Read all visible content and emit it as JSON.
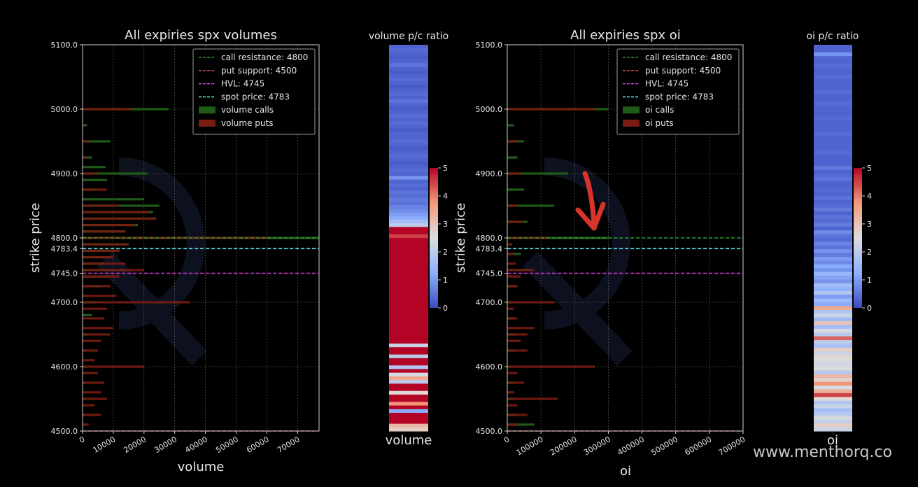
{
  "watermark": "www.menthorq.co",
  "colors": {
    "call_resistance": "#2e9e2e",
    "put_support": "#d9363e",
    "hvl": "#d632d6",
    "spot": "#5ee0e6",
    "calls_bar": "#1f5c1a",
    "puts_bar": "#7a1c12"
  },
  "chart_data": [
    {
      "id": "volumes",
      "type": "bar",
      "orientation": "horizontal",
      "title": "All expiries  spx volumes",
      "xlabel": "volume",
      "ylabel": "strike price",
      "xlim": [
        0,
        77000
      ],
      "ylim": [
        4500,
        5100
      ],
      "x_ticks": [
        "0",
        "10000",
        "20000",
        "30000",
        "40000",
        "50000",
        "60000",
        "70000"
      ],
      "y_ticks": [
        "4500.0",
        "4600.0",
        "4700.0",
        "4745.0",
        "4783.4",
        "4800.0",
        "4900.0",
        "5000.0",
        "5100.0"
      ],
      "grid": true,
      "legend_position": "top-right",
      "legend": [
        "call resistance: 4800",
        "put support: 4500",
        "HVL: 4745",
        "spot price: 4783",
        "volume calls",
        "volume puts"
      ],
      "levels": {
        "call_resistance": 4800,
        "put_support": 4500,
        "hvl": 4745,
        "spot": 4783.4
      },
      "series": [
        {
          "name": "volume calls",
          "strike": [
            5000,
            4975,
            4950,
            4925,
            4910,
            4900,
            4890,
            4875,
            4860,
            4850,
            4840,
            4830,
            4820,
            4810,
            4800,
            4790,
            4780,
            4770,
            4760,
            4750,
            4740,
            4725,
            4700,
            4680,
            4650,
            4625,
            4600,
            4575,
            4550,
            4525,
            4510
          ],
          "values": [
            28000,
            1500,
            9000,
            3000,
            7500,
            21000,
            8000,
            4000,
            20000,
            25000,
            23000,
            24000,
            18000,
            14000,
            77000,
            15000,
            12000,
            9000,
            7000,
            14000,
            9000,
            6000,
            4000,
            3000,
            2000,
            1500,
            1500,
            1000,
            1000,
            800,
            800
          ]
        },
        {
          "name": "volume puts",
          "strike": [
            5000,
            4975,
            4950,
            4925,
            4900,
            4875,
            4850,
            4840,
            4830,
            4820,
            4810,
            4800,
            4790,
            4780,
            4770,
            4760,
            4750,
            4740,
            4725,
            4710,
            4700,
            4690,
            4675,
            4660,
            4650,
            4640,
            4625,
            4610,
            4600,
            4590,
            4575,
            4560,
            4550,
            4540,
            4525,
            4510
          ],
          "values": [
            16000,
            500,
            2000,
            1500,
            5000,
            8000,
            12000,
            22000,
            24000,
            17000,
            14000,
            60000,
            15000,
            12000,
            10000,
            14000,
            20000,
            12000,
            9000,
            11000,
            35000,
            8000,
            7000,
            10000,
            9000,
            6000,
            5000,
            4000,
            20000,
            5000,
            7000,
            6000,
            8000,
            4000,
            6000,
            2000
          ]
        }
      ]
    },
    {
      "id": "volume_ratio",
      "type": "heatmap",
      "title": "volume p/c ratio",
      "xlabel": "volume",
      "colorbar_ticks": [
        "0",
        "1",
        "2",
        "3",
        "4",
        "5"
      ],
      "colorbar_range": [
        0,
        5
      ],
      "values": [
        0.3,
        0.4,
        0.3,
        0.2,
        0.3,
        0.5,
        0.3,
        0.2,
        0.3,
        0.4,
        0.3,
        0.2,
        0.3,
        0.4,
        0.3,
        0.5,
        0.3,
        0.2,
        0.3,
        0.4,
        0.3,
        0.4,
        0.3,
        0.2,
        0.3,
        0.3,
        0.4,
        0.3,
        0.2,
        0.3,
        0.4,
        0.3,
        0.2,
        0.3,
        0.4,
        0.3,
        0.9,
        0.3,
        0.4,
        0.3,
        0.5,
        0.4,
        0.6,
        0.5,
        0.7,
        0.8,
        1.0,
        1.2,
        1.6,
        2.0,
        5,
        5,
        4.5,
        5,
        5,
        5,
        5,
        5,
        5,
        5,
        5,
        5,
        5,
        5,
        5,
        5,
        5,
        5,
        5,
        5,
        5,
        5,
        5,
        5,
        5,
        5,
        5,
        5,
        5,
        5,
        5,
        5,
        2.2,
        5,
        5,
        2.0,
        5,
        5,
        1.8,
        5,
        2.4,
        3.5,
        2.0,
        5,
        5,
        2.6,
        5,
        5,
        3.8,
        5,
        1.2,
        5,
        5,
        5,
        3.2,
        2.8
      ]
    },
    {
      "id": "oi",
      "type": "bar",
      "orientation": "horizontal",
      "title": "All expiries  spx oi",
      "xlabel": "oi",
      "ylabel": "strike price",
      "xlim": [
        0,
        700000
      ],
      "ylim": [
        4500,
        5100
      ],
      "x_ticks": [
        "0",
        "100000",
        "200000",
        "300000",
        "400000",
        "500000",
        "600000",
        "700000"
      ],
      "y_ticks": [
        "4500.0",
        "4600.0",
        "4700.0",
        "4745.0",
        "4783.4",
        "4800.0",
        "4900.0",
        "5000.0",
        "5100.0"
      ],
      "grid": true,
      "legend_position": "top-right",
      "legend": [
        "call resistance: 4800",
        "put support: 4500",
        "HVL: 4745",
        "spot price: 4783",
        "oi calls",
        "oi puts"
      ],
      "levels": {
        "call_resistance": 4800,
        "put_support": 4500,
        "hvl": 4745,
        "spot": 4783.4
      },
      "series": [
        {
          "name": "oi calls",
          "strike": [
            5000,
            4975,
            4950,
            4925,
            4900,
            4875,
            4850,
            4825,
            4800,
            4775,
            4750,
            4725,
            4700,
            4675,
            4650,
            4625,
            4600,
            4575,
            4550,
            4525,
            4510
          ],
          "values": [
            300000,
            20000,
            50000,
            30000,
            180000,
            50000,
            140000,
            60000,
            300000,
            40000,
            70000,
            30000,
            20000,
            20000,
            25000,
            20000,
            15000,
            20000,
            15000,
            30000,
            80000
          ]
        },
        {
          "name": "oi puts",
          "strike": [
            5000,
            4950,
            4900,
            4850,
            4825,
            4800,
            4790,
            4775,
            4760,
            4750,
            4740,
            4725,
            4700,
            4690,
            4675,
            4660,
            4650,
            4640,
            4625,
            4600,
            4590,
            4575,
            4560,
            4550,
            4540,
            4525,
            4510
          ],
          "values": [
            260000,
            30000,
            40000,
            30000,
            50000,
            120000,
            15000,
            20000,
            25000,
            80000,
            40000,
            30000,
            140000,
            20000,
            30000,
            80000,
            60000,
            40000,
            60000,
            260000,
            30000,
            50000,
            20000,
            150000,
            30000,
            60000,
            30000
          ]
        }
      ]
    },
    {
      "id": "oi_ratio",
      "type": "heatmap",
      "title": "oi p/c ratio",
      "xlabel": "oi",
      "colorbar_ticks": [
        "0",
        "1",
        "2",
        "3",
        "4",
        "5"
      ],
      "colorbar_range": [
        0,
        5
      ],
      "values": [
        0.3,
        0.3,
        0.9,
        0.3,
        0.3,
        0.4,
        0.3,
        0.3,
        0.4,
        0.3,
        0.3,
        0.3,
        0.4,
        0.3,
        0.3,
        0.4,
        0.3,
        0.3,
        0.3,
        0.4,
        0.3,
        0.3,
        0.3,
        0.4,
        0.3,
        0.3,
        0.3,
        0.3,
        0.4,
        0.3,
        0.3,
        0.3,
        0.6,
        0.3,
        0.4,
        0.5,
        0.3,
        0.3,
        0.4,
        0.3,
        0.5,
        0.3,
        0.4,
        0.6,
        0.3,
        0.5,
        0.4,
        0.6,
        0.3,
        0.8,
        0.5,
        0.4,
        0.7,
        0.5,
        0.9,
        0.6,
        1.0,
        0.8,
        1.2,
        0.9,
        1.4,
        1.1,
        0.9,
        1.6,
        1.3,
        1.8,
        1.0,
        1.5,
        1.2,
        3.5,
        1.8,
        2.2,
        1.5,
        3.0,
        1.6,
        2.4,
        1.9,
        4.2,
        2.0,
        1.7,
        2.8,
        2.2,
        2.6,
        2.4,
        2.3,
        2.5,
        1.9,
        3.2,
        2.7,
        3.8,
        2.4,
        3.4,
        4.5,
        2.6,
        1.8,
        2.2,
        1.6,
        1.9,
        2.4,
        2.1,
        2.8,
        2.2
      ]
    }
  ]
}
